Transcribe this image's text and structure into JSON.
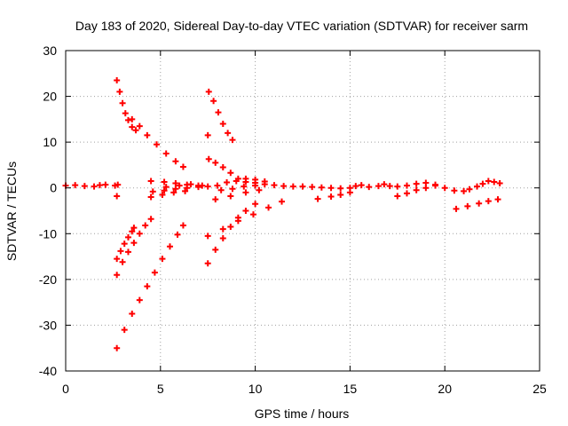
{
  "chart_data": {
    "type": "scatter",
    "title": "Day 183 of 2020, Sidereal Day-to-day VTEC variation (SDTVAR) for receiver sarm",
    "xlabel": "GPS time / hours",
    "ylabel": "SDTVAR / TECUs",
    "xlim": [
      0,
      25
    ],
    "ylim": [
      -40,
      30
    ],
    "xticks": [
      "0",
      "5",
      "10",
      "15",
      "20",
      "25"
    ],
    "yticks": [
      "-40",
      "-30",
      "-20",
      "-10",
      "0",
      "10",
      "20",
      "30"
    ],
    "grid": true,
    "marker": "+",
    "color": "#ff0000",
    "series_points": [
      [
        0.0,
        0.5
      ],
      [
        0.5,
        0.6
      ],
      [
        1.0,
        0.4
      ],
      [
        1.5,
        0.3
      ],
      [
        1.8,
        0.6
      ],
      [
        2.1,
        0.7
      ],
      [
        2.6,
        0.5
      ],
      [
        2.7,
        -1.8
      ],
      [
        2.75,
        0.7
      ],
      [
        2.7,
        23.5
      ],
      [
        2.85,
        21
      ],
      [
        3.0,
        18.5
      ],
      [
        3.15,
        16.3
      ],
      [
        3.3,
        14.8
      ],
      [
        3.5,
        13.3
      ],
      [
        3.7,
        12.6
      ],
      [
        3.5,
        15
      ],
      [
        3.9,
        13.5
      ],
      [
        4.3,
        11.5
      ],
      [
        4.8,
        9.5
      ],
      [
        5.3,
        7.5
      ],
      [
        5.8,
        5.8
      ],
      [
        6.2,
        4.6
      ],
      [
        7.55,
        21
      ],
      [
        7.8,
        19
      ],
      [
        8.05,
        16.5
      ],
      [
        8.3,
        14
      ],
      [
        8.55,
        12
      ],
      [
        8.8,
        10.5
      ],
      [
        7.5,
        11.5
      ],
      [
        7.55,
        6.3
      ],
      [
        7.9,
        5.5
      ],
      [
        8.3,
        4.5
      ],
      [
        8.7,
        3.3
      ],
      [
        9.1,
        2.0
      ],
      [
        4.5,
        1.5
      ],
      [
        5.2,
        1.3
      ],
      [
        5.8,
        1.0
      ],
      [
        6.4,
        0.7
      ],
      [
        7.0,
        0.5
      ],
      [
        7.5,
        0.3
      ],
      [
        4.6,
        -0.8
      ],
      [
        5.2,
        -0.6
      ],
      [
        5.8,
        -0.2
      ],
      [
        6.4,
        0.0
      ],
      [
        7.0,
        0.2
      ],
      [
        4.5,
        -2.0
      ],
      [
        5.1,
        -1.5
      ],
      [
        5.7,
        -1.0
      ],
      [
        6.3,
        -0.7
      ],
      [
        5.3,
        0.2
      ],
      [
        6.0,
        0.5
      ],
      [
        6.6,
        0.8
      ],
      [
        7.2,
        0.5
      ],
      [
        2.7,
        -15.5
      ],
      [
        2.9,
        -13.8
      ],
      [
        3.1,
        -12.2
      ],
      [
        3.3,
        -10.8
      ],
      [
        3.5,
        -9.5
      ],
      [
        3.6,
        -8.7
      ],
      [
        2.7,
        -19
      ],
      [
        3.0,
        -16.2
      ],
      [
        3.3,
        -14
      ],
      [
        3.6,
        -12
      ],
      [
        3.9,
        -10
      ],
      [
        4.2,
        -8.2
      ],
      [
        4.5,
        -6.8
      ],
      [
        2.7,
        -35
      ],
      [
        3.1,
        -31
      ],
      [
        3.5,
        -27.5
      ],
      [
        3.9,
        -24.5
      ],
      [
        4.3,
        -21.5
      ],
      [
        4.7,
        -18.5
      ],
      [
        5.1,
        -15.5
      ],
      [
        5.5,
        -12.8
      ],
      [
        5.9,
        -10.2
      ],
      [
        6.2,
        -8.2
      ],
      [
        7.5,
        -16.5
      ],
      [
        7.9,
        -13.5
      ],
      [
        8.3,
        -11
      ],
      [
        8.7,
        -8.5
      ],
      [
        9.1,
        -6.5
      ],
      [
        9.5,
        -5
      ],
      [
        10.0,
        -3.5
      ],
      [
        7.5,
        -10.5
      ],
      [
        8.3,
        -9
      ],
      [
        9.1,
        -7.2
      ],
      [
        9.9,
        -5.8
      ],
      [
        10.7,
        -4.3
      ],
      [
        11.4,
        -3.0
      ],
      [
        7.9,
        -2.5
      ],
      [
        8.7,
        -1.8
      ],
      [
        9.5,
        -1.0
      ],
      [
        10.2,
        -0.5
      ],
      [
        8.0,
        0.5
      ],
      [
        8.5,
        1.2
      ],
      [
        9.0,
        1.5
      ],
      [
        9.5,
        1.3
      ],
      [
        10.0,
        1.1
      ],
      [
        10.5,
        0.8
      ],
      [
        11.0,
        0.6
      ],
      [
        11.5,
        0.4
      ],
      [
        12.0,
        0.3
      ],
      [
        8.2,
        -0.5
      ],
      [
        8.8,
        -0.2
      ],
      [
        9.4,
        0.3
      ],
      [
        10.0,
        0.5
      ],
      [
        9.5,
        2.0
      ],
      [
        10.0,
        1.8
      ],
      [
        10.5,
        1.4
      ],
      [
        12.5,
        0.3
      ],
      [
        13.0,
        0.2
      ],
      [
        13.5,
        0.1
      ],
      [
        14.0,
        0.0
      ],
      [
        14.5,
        -0.1
      ],
      [
        15.0,
        0.0
      ],
      [
        13.3,
        -2.4
      ],
      [
        14.0,
        -1.9
      ],
      [
        14.5,
        -1.5
      ],
      [
        15.0,
        -1.0
      ],
      [
        15.3,
        0.4
      ],
      [
        15.6,
        0.6
      ],
      [
        16.0,
        0.2
      ],
      [
        16.5,
        0.4
      ],
      [
        16.8,
        0.8
      ],
      [
        17.1,
        0.4
      ],
      [
        17.5,
        0.3
      ],
      [
        18.0,
        0.5
      ],
      [
        18.5,
        0.9
      ],
      [
        19.0,
        1.1
      ],
      [
        19.5,
        0.7
      ],
      [
        20.0,
        0.0
      ],
      [
        20.5,
        -0.6
      ],
      [
        21.0,
        -0.7
      ],
      [
        21.3,
        -0.3
      ],
      [
        21.7,
        0.3
      ],
      [
        22.0,
        0.9
      ],
      [
        22.3,
        1.5
      ],
      [
        22.6,
        1.3
      ],
      [
        22.9,
        1.0
      ],
      [
        17.5,
        -1.8
      ],
      [
        18.0,
        -1.2
      ],
      [
        18.5,
        -0.5
      ],
      [
        19.0,
        0.0
      ],
      [
        19.5,
        0.5
      ],
      [
        20.6,
        -4.6
      ],
      [
        21.2,
        -4.0
      ],
      [
        21.8,
        -3.4
      ],
      [
        22.3,
        -2.9
      ],
      [
        22.8,
        -2.5
      ]
    ]
  }
}
